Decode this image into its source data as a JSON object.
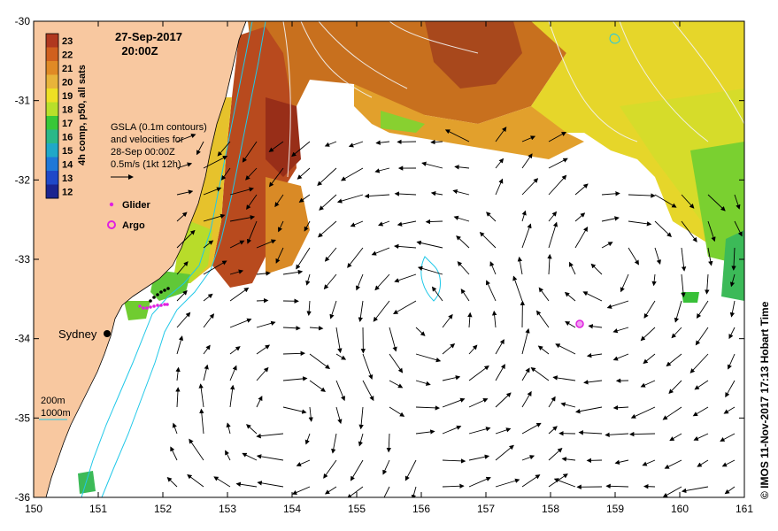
{
  "title": {
    "date": "27-Sep-2017",
    "time": "20:00Z"
  },
  "colorbar": {
    "label": "4h comp, p50, all sats",
    "ticks": [
      "23",
      "22",
      "21",
      "20",
      "19",
      "18",
      "17",
      "16",
      "15",
      "14",
      "13",
      "12"
    ],
    "colors": [
      "#b0381f",
      "#d0601e",
      "#e08a25",
      "#e8b43a",
      "#eee024",
      "#b8e02a",
      "#38c838",
      "#2ab888",
      "#20a8c8",
      "#1f78d8",
      "#1f48c8",
      "#1a2490"
    ]
  },
  "legend": {
    "gsla_lines": [
      "GSLA (0.1m contours)",
      "and velocities for",
      "28-Sep 00:00Z",
      "0.5m/s (1kt 12h)"
    ],
    "glider_label": "Glider",
    "argo_label": "Argo",
    "isobath_200": "200m",
    "isobath_1000": "1000m"
  },
  "place": {
    "city": "Sydney"
  },
  "axes": {
    "x_ticks": [
      "150",
      "151",
      "152",
      "153",
      "154",
      "155",
      "156",
      "157",
      "158",
      "159",
      "160",
      "161"
    ],
    "y_ticks": [
      "-30",
      "-31",
      "-32",
      "-33",
      "-34",
      "-35",
      "-36"
    ],
    "x_range": [
      150,
      161
    ],
    "y_range": [
      -36,
      -30
    ]
  },
  "credit": "© IMOS 11-Nov-2017 17:13 Hobart Time",
  "colors": {
    "land": "#f8c8a0",
    "contour": "#20c8e8",
    "glider": "#e020e0",
    "argo": "#e020e0"
  }
}
